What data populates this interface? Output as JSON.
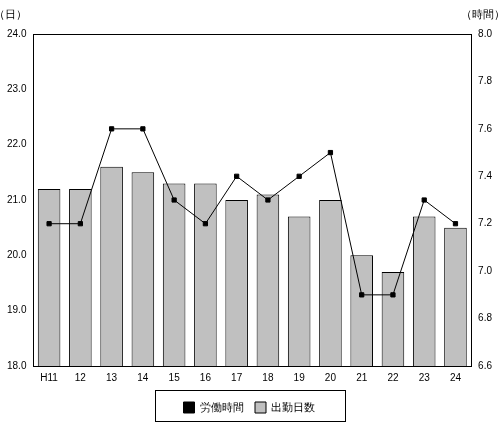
{
  "chart_data": {
    "type": "bar",
    "y_label": "（日）",
    "y2_label": "（時間）",
    "categories": [
      "H11",
      "12",
      "13",
      "14",
      "15",
      "16",
      "17",
      "18",
      "19",
      "20",
      "21",
      "22",
      "23",
      "24"
    ],
    "series": [
      {
        "name": "出勤日数",
        "type": "bar",
        "color": "#c0c0c0",
        "values": [
          21.2,
          21.2,
          21.6,
          21.5,
          21.3,
          21.3,
          21.0,
          21.1,
          20.7,
          21.0,
          20.0,
          19.7,
          20.7,
          20.5
        ]
      },
      {
        "name": "労働時間",
        "type": "line",
        "color": "#000000",
        "marker": "square",
        "axis": "y2",
        "values": [
          7.2,
          7.2,
          7.6,
          7.6,
          7.3,
          7.2,
          7.4,
          7.3,
          7.4,
          7.5,
          6.9,
          6.9,
          7.3,
          7.2
        ]
      }
    ],
    "ylim": [
      18,
      24
    ],
    "yticks": [
      {
        "value": 18,
        "label": "18.0"
      },
      {
        "value": 19,
        "label": "19.0"
      },
      {
        "value": 20,
        "label": "20.0"
      },
      {
        "value": 21,
        "label": "21.0"
      },
      {
        "value": 22,
        "label": "22.0"
      },
      {
        "value": 23,
        "label": "23.0"
      },
      {
        "value": 24,
        "label": "24.0"
      }
    ],
    "y2lim": [
      6.6,
      8
    ],
    "y2ticks": [
      6.6,
      6.8,
      {
        "value": 7,
        "label": "7.0"
      },
      7.2,
      7.4,
      7.6,
      7.8,
      {
        "value": 8,
        "label": "8.0"
      }
    ],
    "grid": false,
    "legend": "bottom"
  }
}
